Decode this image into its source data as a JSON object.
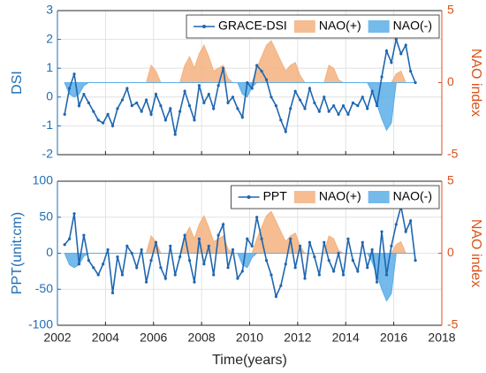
{
  "chart_data": [
    {
      "type": "line",
      "ylabel": "DSI",
      "y2label": "NAO index",
      "xlim": [
        2002,
        2018
      ],
      "xticks": [
        2002,
        2004,
        2006,
        2008,
        2010,
        2012,
        2014,
        2016,
        2018
      ],
      "show_xtick_labels": false,
      "ylim": [
        -2,
        3
      ],
      "yticks": [
        -2,
        -1,
        0,
        1,
        2,
        3
      ],
      "y2lim": [
        -5,
        5
      ],
      "y2ticks": [
        -5,
        0,
        5
      ],
      "grid": true,
      "legend": "top-right",
      "x": [
        2002.3,
        2002.5,
        2002.7,
        2002.9,
        2003.1,
        2003.3,
        2003.5,
        2003.7,
        2003.9,
        2004.1,
        2004.3,
        2004.5,
        2004.7,
        2004.9,
        2005.1,
        2005.3,
        2005.5,
        2005.7,
        2005.9,
        2006.1,
        2006.3,
        2006.5,
        2006.7,
        2006.9,
        2007.1,
        2007.3,
        2007.5,
        2007.7,
        2007.9,
        2008.1,
        2008.3,
        2008.5,
        2008.7,
        2008.9,
        2009.1,
        2009.3,
        2009.5,
        2009.7,
        2009.9,
        2010.1,
        2010.3,
        2010.5,
        2010.7,
        2010.9,
        2011.1,
        2011.3,
        2011.5,
        2011.7,
        2011.9,
        2012.1,
        2012.3,
        2012.5,
        2012.7,
        2012.9,
        2013.1,
        2013.3,
        2013.5,
        2013.7,
        2013.9,
        2014.1,
        2014.3,
        2014.5,
        2014.7,
        2014.9,
        2015.1,
        2015.3,
        2015.5,
        2015.7,
        2015.9,
        2016.1,
        2016.3,
        2016.5,
        2016.7,
        2016.9
      ],
      "series": [
        {
          "name": "GRACE-DSI",
          "color": "#1f66b0",
          "kind": "line",
          "values": [
            -0.6,
            0.3,
            0.8,
            -0.3,
            0.1,
            -0.2,
            -0.5,
            -0.8,
            -0.9,
            -0.6,
            -1.0,
            -0.4,
            -0.1,
            0.3,
            -0.3,
            -0.2,
            -0.5,
            -0.1,
            -0.6,
            0.1,
            -0.3,
            -0.8,
            -0.4,
            -1.3,
            -0.5,
            0.2,
            -0.3,
            -0.8,
            0.4,
            -0.2,
            0.1,
            -0.4,
            0.4,
            1.0,
            -0.2,
            0.0,
            -0.4,
            -0.7,
            0.5,
            0.3,
            1.1,
            0.9,
            0.6,
            0.0,
            -0.3,
            -0.8,
            -1.2,
            -0.4,
            0.2,
            -0.1,
            -0.4,
            0.3,
            -0.2,
            -0.5,
            0.0,
            -0.5,
            -0.3,
            -0.6,
            -0.3,
            -0.6,
            -0.2,
            -0.3,
            0.0,
            -0.4,
            0.2,
            -0.3,
            0.7,
            1.6,
            1.2,
            2.0,
            1.5,
            1.8,
            0.9,
            0.5
          ]
        },
        {
          "name": "NAO(+)",
          "color": "#f3b27e",
          "kind": "area",
          "axis": "y2",
          "values": [
            0,
            0,
            0,
            0,
            0,
            0,
            0,
            0,
            0,
            0,
            0,
            0,
            0,
            0,
            0,
            0,
            0,
            0,
            1.2,
            0.8,
            0,
            0,
            0,
            0,
            0,
            1.2,
            1.8,
            1.0,
            2.0,
            2.6,
            1.8,
            0.8,
            1.0,
            1.2,
            0.3,
            0,
            0,
            0,
            0,
            0,
            1.0,
            1.8,
            2.6,
            2.9,
            2.2,
            1.5,
            0.8,
            1.2,
            1.4,
            0.5,
            0,
            0,
            0,
            0,
            0,
            1.2,
            1.0,
            0.2,
            0,
            0,
            0,
            0,
            0,
            0,
            0,
            0,
            0,
            0,
            0,
            0.6,
            0.8,
            0,
            0,
            0
          ]
        },
        {
          "name": "NAO(-)",
          "color": "#5caee8",
          "kind": "area",
          "axis": "y2",
          "values": [
            0,
            -0.8,
            -1.0,
            -0.8,
            -0.2,
            0,
            0,
            0,
            0,
            0,
            0,
            0,
            0,
            0,
            0,
            0,
            0,
            0,
            0,
            0,
            0,
            0,
            0,
            0,
            0,
            0,
            0,
            0,
            0,
            0,
            0,
            0,
            0,
            0,
            0,
            0,
            0,
            -0.8,
            -1.0,
            -0.3,
            0,
            0,
            0,
            0,
            0,
            0,
            0,
            0,
            0,
            0,
            0,
            0,
            0,
            0,
            0,
            0,
            0,
            0,
            0,
            0,
            0,
            0,
            0,
            0,
            -0.6,
            -1.5,
            -2.5,
            -3.3,
            -2.8,
            0,
            0,
            0,
            0,
            0
          ]
        }
      ]
    },
    {
      "type": "line",
      "ylabel": "PPT(unit:cm)",
      "y2label": "NAO index",
      "xlabel": "Time(years)",
      "xlim": [
        2002,
        2018
      ],
      "xticks": [
        2002,
        2004,
        2006,
        2008,
        2010,
        2012,
        2014,
        2016,
        2018
      ],
      "show_xtick_labels": true,
      "ylim": [
        -100,
        100
      ],
      "yticks": [
        -100,
        -50,
        0,
        50,
        100
      ],
      "y2lim": [
        -5,
        5
      ],
      "y2ticks": [
        -5,
        0,
        5
      ],
      "grid": true,
      "legend": "top-right",
      "x": [
        2002.3,
        2002.5,
        2002.7,
        2002.9,
        2003.1,
        2003.3,
        2003.5,
        2003.7,
        2003.9,
        2004.1,
        2004.3,
        2004.5,
        2004.7,
        2004.9,
        2005.1,
        2005.3,
        2005.5,
        2005.7,
        2005.9,
        2006.1,
        2006.3,
        2006.5,
        2006.7,
        2006.9,
        2007.1,
        2007.3,
        2007.5,
        2007.7,
        2007.9,
        2008.1,
        2008.3,
        2008.5,
        2008.7,
        2008.9,
        2009.1,
        2009.3,
        2009.5,
        2009.7,
        2009.9,
        2010.1,
        2010.3,
        2010.5,
        2010.7,
        2010.9,
        2011.1,
        2011.3,
        2011.5,
        2011.7,
        2011.9,
        2012.1,
        2012.3,
        2012.5,
        2012.7,
        2012.9,
        2013.1,
        2013.3,
        2013.5,
        2013.7,
        2013.9,
        2014.1,
        2014.3,
        2014.5,
        2014.7,
        2014.9,
        2015.1,
        2015.3,
        2015.5,
        2015.7,
        2015.9,
        2016.1,
        2016.3,
        2016.5,
        2016.7,
        2016.9
      ],
      "series": [
        {
          "name": "PPT",
          "color": "#1f66b0",
          "kind": "line",
          "values": [
            12,
            20,
            55,
            -15,
            25,
            -10,
            -20,
            -30,
            -15,
            5,
            -55,
            -5,
            -30,
            10,
            0,
            -20,
            5,
            -40,
            -10,
            15,
            -20,
            -35,
            10,
            -30,
            -5,
            25,
            -10,
            -40,
            20,
            -15,
            10,
            -30,
            25,
            40,
            -20,
            5,
            -35,
            -25,
            20,
            10,
            50,
            20,
            -10,
            -30,
            -60,
            -45,
            -15,
            20,
            -20,
            10,
            -35,
            15,
            -5,
            -30,
            15,
            -10,
            -25,
            0,
            -30,
            20,
            -10,
            -25,
            15,
            -20,
            5,
            -40,
            30,
            -30,
            10,
            40,
            65,
            30,
            45,
            -10
          ]
        },
        {
          "name": "NAO(+)",
          "color": "#f3b27e",
          "kind": "area",
          "axis": "y2",
          "values": [
            0,
            0,
            0,
            0,
            0,
            0,
            0,
            0,
            0,
            0,
            0,
            0,
            0,
            0,
            0,
            0,
            0,
            0,
            1.2,
            0.8,
            0,
            0,
            0,
            0,
            0,
            1.2,
            1.8,
            1.0,
            2.0,
            2.6,
            1.8,
            0.8,
            1.0,
            1.2,
            0.3,
            0,
            0,
            0,
            0,
            0,
            1.0,
            1.8,
            2.6,
            2.9,
            2.2,
            1.5,
            0.8,
            1.2,
            1.4,
            0.5,
            0,
            0,
            0,
            0,
            0,
            1.2,
            1.0,
            0.2,
            0,
            0,
            0,
            0,
            0,
            0,
            0,
            0,
            0,
            0,
            0,
            0.6,
            0.8,
            0,
            0,
            0
          ]
        },
        {
          "name": "NAO(-)",
          "color": "#5caee8",
          "kind": "area",
          "axis": "y2",
          "values": [
            0,
            -0.8,
            -1.0,
            -0.8,
            -0.2,
            0,
            0,
            0,
            0,
            0,
            0,
            0,
            0,
            0,
            0,
            0,
            0,
            0,
            0,
            0,
            0,
            0,
            0,
            0,
            0,
            0,
            0,
            0,
            0,
            0,
            0,
            0,
            0,
            0,
            0,
            0,
            0,
            -0.8,
            -1.0,
            -0.3,
            0,
            0,
            0,
            0,
            0,
            0,
            0,
            0,
            0,
            0,
            0,
            0,
            0,
            0,
            0,
            0,
            0,
            0,
            0,
            0,
            0,
            0,
            0,
            0,
            -0.6,
            -1.5,
            -2.5,
            -3.3,
            -2.8,
            0,
            0,
            0,
            0,
            0
          ]
        }
      ]
    }
  ]
}
